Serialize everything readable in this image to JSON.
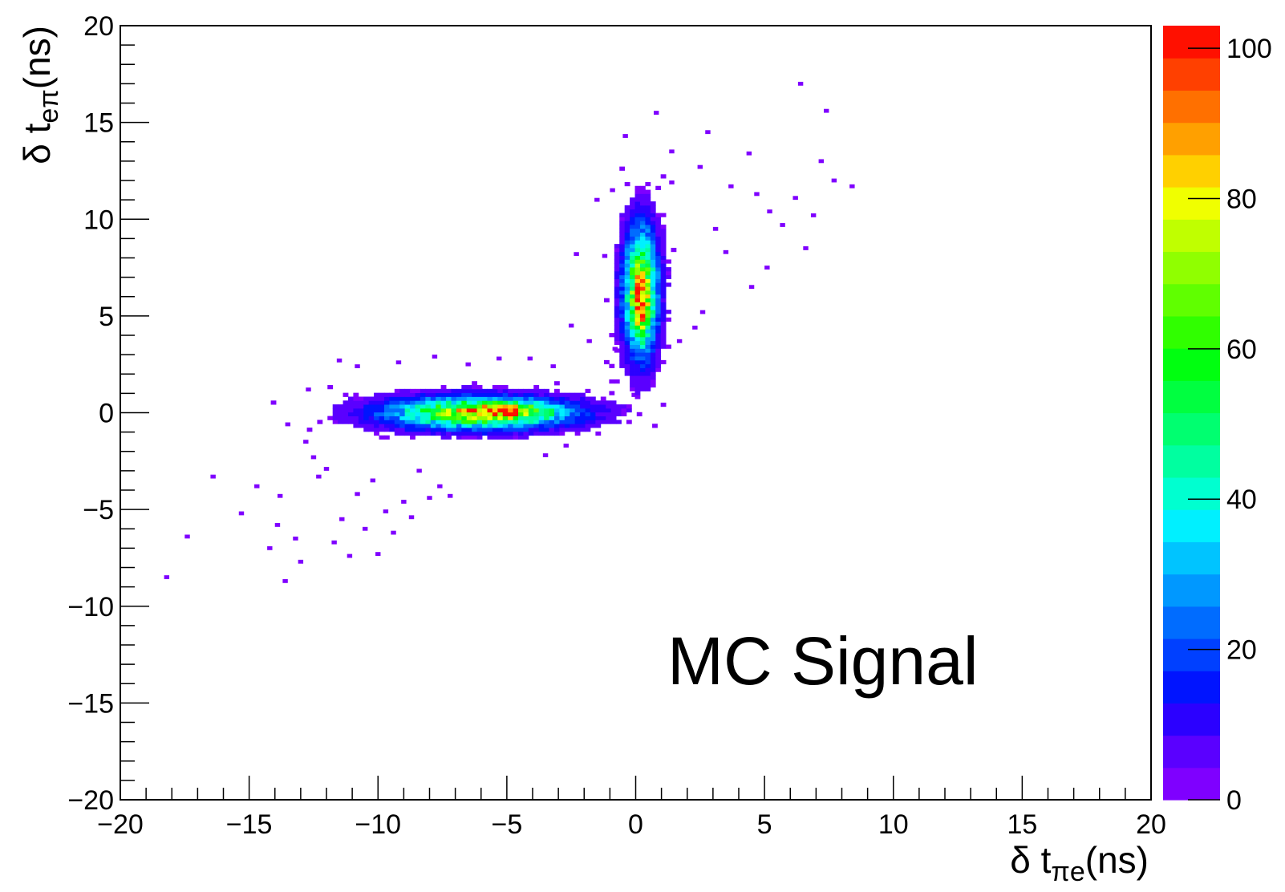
{
  "chart_data": {
    "type": "heatmap",
    "title": "",
    "xlabel": {
      "prefix": "δ t",
      "sub": "πe",
      "suffix": "(ns)"
    },
    "ylabel": {
      "prefix": "δ t",
      "sub": "eπ",
      "suffix": "(ns)"
    },
    "xlim": [
      -20,
      20
    ],
    "ylim": [
      -20,
      20
    ],
    "x_ticks": [
      -20,
      -15,
      -10,
      -5,
      0,
      5,
      10,
      15,
      20
    ],
    "x_tick_labels": [
      "−20",
      "−15",
      "−10",
      "−5",
      "0",
      "5",
      "10",
      "15",
      "20"
    ],
    "y_ticks": [
      -20,
      -15,
      -10,
      -5,
      0,
      5,
      10,
      15,
      20
    ],
    "y_tick_labels": [
      "−20",
      "−15",
      "−10",
      "−5",
      "0",
      "5",
      "10",
      "15",
      "20"
    ],
    "grid": false,
    "annotation": "MC Signal",
    "colorbar": {
      "min": 0,
      "max": 103,
      "ticks": [
        0,
        20,
        40,
        60,
        80,
        100
      ],
      "tick_labels": [
        "0",
        "20",
        "40",
        "60",
        "80",
        "100"
      ],
      "band_colors": [
        "#7f00ff",
        "#5a00ff",
        "#2b00ff",
        "#0014ff",
        "#0040ff",
        "#006cff",
        "#0098ff",
        "#00c4ff",
        "#00f0ff",
        "#00ffd0",
        "#00ffa0",
        "#00ff70",
        "#00ff40",
        "#00ff10",
        "#30ff00",
        "#60ff00",
        "#90ff00",
        "#c0ff00",
        "#f0ff00",
        "#ffd000",
        "#ffa000",
        "#ff7000",
        "#ff4000",
        "#ff1000"
      ]
    },
    "clusters": [
      {
        "name": "",
        "center": [
          -6.2,
          -0.1
        ],
        "sigma": [
          2.4,
          0.55
        ],
        "peak": 100,
        "peak_at": [
          -5.2,
          0.0
        ]
      },
      {
        "name": "",
        "center": [
          0.1,
          6.2
        ],
        "sigma": [
          0.45,
          2.2
        ],
        "peak": 100,
        "peak_at": [
          0.1,
          5.4
        ]
      }
    ],
    "sparse_points": [
      [
        -18.3,
        -8.6
      ],
      [
        -17.5,
        -6.5
      ],
      [
        -16.5,
        -3.4
      ],
      [
        -15.4,
        -5.3
      ],
      [
        -14.8,
        -3.9
      ],
      [
        -14.3,
        -7.1
      ],
      [
        -14.0,
        -5.9
      ],
      [
        -13.9,
        -4.4
      ],
      [
        -13.7,
        -8.8
      ],
      [
        -13.6,
        -0.7
      ],
      [
        -13.3,
        -6.6
      ],
      [
        -13.1,
        -7.8
      ],
      [
        -12.9,
        -1.6
      ],
      [
        -12.6,
        -2.4
      ],
      [
        -12.4,
        -3.4
      ],
      [
        -12.1,
        -3.0
      ],
      [
        -11.8,
        -6.8
      ],
      [
        -11.5,
        -5.6
      ],
      [
        -11.2,
        -7.5
      ],
      [
        -10.9,
        -4.3
      ],
      [
        -10.6,
        -6.1
      ],
      [
        -10.3,
        -3.6
      ],
      [
        -10.1,
        -7.4
      ],
      [
        -9.8,
        -5.2
      ],
      [
        -9.5,
        -6.3
      ],
      [
        -9.1,
        -4.7
      ],
      [
        -8.8,
        -5.5
      ],
      [
        -8.5,
        -3.1
      ],
      [
        -8.1,
        -4.5
      ],
      [
        -7.7,
        -3.9
      ],
      [
        -7.3,
        -4.4
      ],
      [
        -11.6,
        2.6
      ],
      [
        -10.9,
        2.3
      ],
      [
        -9.3,
        2.5
      ],
      [
        -7.9,
        2.8
      ],
      [
        -6.6,
        2.4
      ],
      [
        -5.4,
        2.7
      ],
      [
        -4.2,
        2.7
      ],
      [
        -3.3,
        2.3
      ],
      [
        -2.8,
        -1.8
      ],
      [
        -3.6,
        -2.3
      ],
      [
        -12.8,
        1.1
      ],
      [
        -1.3,
        8.0
      ],
      [
        -1.6,
        10.9
      ],
      [
        -1.0,
        11.4
      ],
      [
        -2.4,
        8.1
      ],
      [
        -2.6,
        4.4
      ],
      [
        -1.9,
        3.6
      ],
      [
        -0.5,
        14.2
      ],
      [
        0.7,
        15.4
      ],
      [
        1.3,
        13.4
      ],
      [
        2.4,
        12.6
      ],
      [
        2.7,
        14.4
      ],
      [
        3.6,
        11.6
      ],
      [
        4.3,
        13.3
      ],
      [
        4.6,
        11.2
      ],
      [
        5.1,
        10.3
      ],
      [
        5.6,
        9.6
      ],
      [
        6.1,
        11.0
      ],
      [
        6.3,
        16.9
      ],
      [
        6.5,
        8.4
      ],
      [
        6.8,
        10.1
      ],
      [
        7.1,
        12.9
      ],
      [
        7.3,
        15.5
      ],
      [
        7.6,
        11.9
      ],
      [
        8.3,
        11.6
      ],
      [
        5.0,
        7.4
      ],
      [
        4.4,
        6.4
      ],
      [
        3.4,
        8.2
      ],
      [
        2.5,
        5.1
      ],
      [
        2.2,
        4.3
      ],
      [
        3.0,
        9.4
      ],
      [
        1.6,
        3.6
      ],
      [
        -0.9,
        3.2
      ],
      [
        1.3,
        11.8
      ]
    ]
  }
}
